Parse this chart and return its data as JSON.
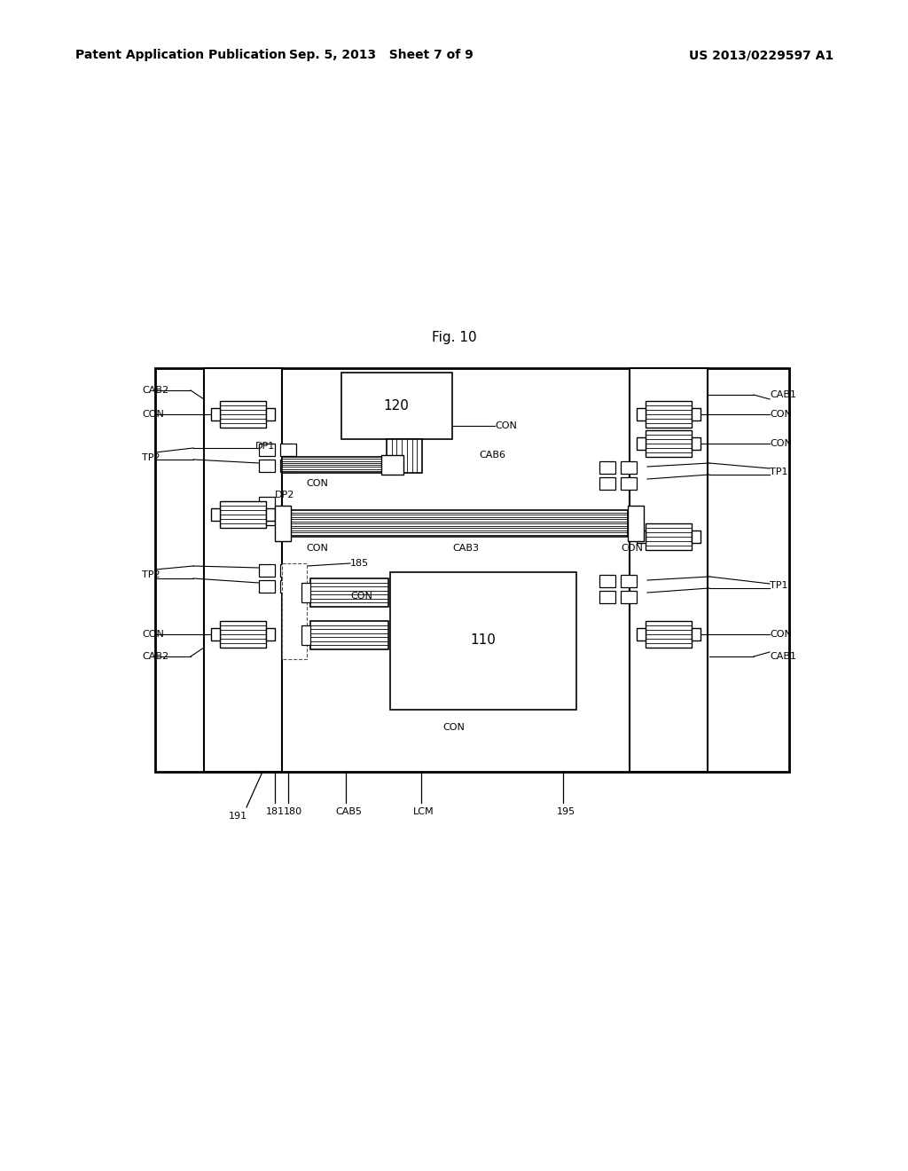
{
  "header_left": "Patent Application Publication",
  "header_mid": "Sep. 5, 2013   Sheet 7 of 9",
  "header_right": "US 2013/0229597 A1",
  "fig_title": "Fig. 10",
  "bg_color": "#ffffff",
  "lc": "#000000",
  "notes": "LCD patent schematic Fig.10"
}
